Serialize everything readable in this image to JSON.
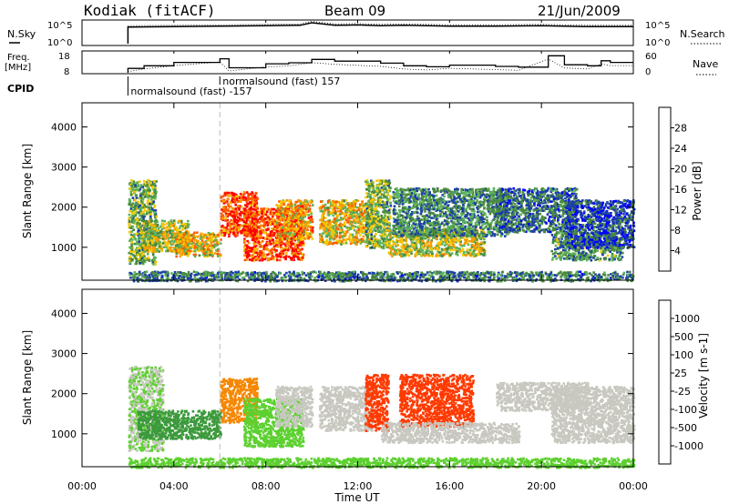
{
  "header": {
    "station": "Kodiak (fitACF)",
    "beam": "Beam 09",
    "date": "21/Jun/2009"
  },
  "left_labels": {
    "nsky": "N.Sky",
    "freq_line1": "Freq.",
    "freq_line2": "[MHz]",
    "cpid": "CPID"
  },
  "right_labels": {
    "nsearch": "N.Search",
    "nave": "Nave"
  },
  "cpid_labels": [
    {
      "text": "normalsound (fast) -157",
      "start_hour": 2.0
    },
    {
      "text": "normalsound (fast) 157",
      "start_hour": 6.0
    }
  ],
  "colors": {
    "power": [
      "#0000ff",
      "#1c3fa8",
      "#4a8a3c",
      "#5cb35c",
      "#f5c800",
      "#f59a00",
      "#ff5a00",
      "#ff0000"
    ],
    "velocity": [
      "#ff0000",
      "#ff3a00",
      "#f58700",
      "#f5b700",
      "#c8c8c0",
      "#5dd030",
      "#3c9a3c",
      "#1e5a6e",
      "#1e3aa8",
      "#1f3fbf"
    ]
  },
  "chart_data": [
    {
      "type": "line",
      "name": "N.Sky / N.Search",
      "x_unit": "hour UT",
      "xlim": [
        0,
        24
      ],
      "ylabel": "N.Sky",
      "y2label": "N.Search",
      "ytick_labels": [
        "10^5",
        "10^0"
      ],
      "y2tick_labels": [
        "10^5",
        "10^0"
      ],
      "x": [
        2,
        4,
        6,
        8,
        9.5,
        10,
        11,
        12,
        13,
        14,
        16,
        18,
        20,
        22,
        24
      ],
      "y_log10": [
        3.8,
        3.9,
        4.0,
        4.1,
        4.2,
        4.8,
        4.2,
        4.3,
        4.1,
        4.2,
        4.0,
        4.0,
        4.1,
        3.9,
        3.9
      ]
    },
    {
      "type": "line",
      "name": "Freq. [MHz] / Nave",
      "x_unit": "hour UT",
      "xlim": [
        0,
        24
      ],
      "ylabel": "Freq. [MHz]",
      "ytick_labels": [
        "18",
        "8"
      ],
      "y2label": "Nave",
      "y2tick_labels": [
        "60",
        "0"
      ],
      "x": [
        2,
        2.7,
        4,
        6,
        6.4,
        8,
        9,
        10,
        11,
        13,
        14,
        15,
        16,
        18,
        19,
        20.3,
        21,
        22,
        22.6,
        23,
        24
      ],
      "y": [
        10.2,
        11.5,
        13.2,
        15.0,
        10.5,
        12.5,
        13.0,
        14.7,
        13.8,
        12.8,
        11.5,
        11.0,
        11.8,
        11.2,
        10.8,
        16.5,
        12.0,
        11.5,
        14.0,
        13.2,
        13.2
      ]
    },
    {
      "type": "heatmap",
      "name": "Power",
      "x_unit": "hour UT",
      "xlim": [
        0,
        24
      ],
      "ylim": [
        180,
        4600
      ],
      "ylabel": "Slant Range [km]",
      "yticks": [
        1000,
        2000,
        3000,
        4000
      ],
      "colorbar_label": "Power [dB]",
      "colorbar_ticks": [
        4,
        8,
        12,
        16,
        20,
        24,
        28
      ],
      "colorbar_range": [
        0,
        32
      ],
      "blobs": [
        {
          "t0": 2.0,
          "t1": 3.2,
          "r0": 600,
          "r1": 2700,
          "v": 13
        },
        {
          "t0": 2.6,
          "t1": 4.6,
          "r0": 900,
          "r1": 1700,
          "v": 16
        },
        {
          "t0": 4.0,
          "t1": 6.0,
          "r0": 800,
          "r1": 1400,
          "v": 19
        },
        {
          "t0": 6.0,
          "t1": 7.6,
          "r0": 1300,
          "r1": 2400,
          "v": 29
        },
        {
          "t0": 7.0,
          "t1": 9.6,
          "r0": 700,
          "r1": 2000,
          "v": 28
        },
        {
          "t0": 8.4,
          "t1": 10.0,
          "r0": 1200,
          "r1": 2200,
          "v": 21
        },
        {
          "t0": 10.3,
          "t1": 12.6,
          "r0": 1100,
          "r1": 2200,
          "v": 19
        },
        {
          "t0": 12.3,
          "t1": 13.4,
          "r0": 1000,
          "r1": 2700,
          "v": 13
        },
        {
          "t0": 13.3,
          "t1": 17.5,
          "r0": 800,
          "r1": 1500,
          "v": 17
        },
        {
          "t0": 13.5,
          "t1": 18.5,
          "r0": 1300,
          "r1": 2500,
          "v": 10
        },
        {
          "t0": 18.0,
          "t1": 21.5,
          "r0": 1400,
          "r1": 2500,
          "v": 8
        },
        {
          "t0": 20.4,
          "t1": 23.5,
          "r0": 700,
          "r1": 1400,
          "v": 11
        },
        {
          "t0": 21.0,
          "t1": 24.0,
          "r0": 1000,
          "r1": 2200,
          "v": 6
        },
        {
          "t0": 2.0,
          "t1": 24.0,
          "r0": 180,
          "r1": 420,
          "v": 9
        }
      ]
    },
    {
      "type": "heatmap",
      "name": "Velocity",
      "x_unit": "hour UT",
      "xlim": [
        0,
        24
      ],
      "ylim": [
        180,
        4600
      ],
      "ylabel": "Slant Range [km]",
      "yticks": [
        1000,
        2000,
        3000,
        4000
      ],
      "colorbar_label": "Velocity [m s-1]",
      "colorbar_ticks": [
        1000,
        500,
        100,
        25,
        -25,
        -100,
        -500,
        -1000
      ],
      "blobs": [
        {
          "t0": 2.0,
          "t1": 3.5,
          "r0": 600,
          "r1": 2700,
          "v": 25
        },
        {
          "t0": 2.4,
          "t1": 6.0,
          "r0": 900,
          "r1": 1600,
          "v": 180
        },
        {
          "t0": 6.0,
          "t1": 7.6,
          "r0": 1300,
          "r1": 2400,
          "v": -60
        },
        {
          "t0": 7.0,
          "t1": 9.6,
          "r0": 700,
          "r1": 1900,
          "v": 60
        },
        {
          "t0": 8.4,
          "t1": 10.0,
          "r0": 1200,
          "r1": 2200,
          "v": 0
        },
        {
          "t0": 10.3,
          "t1": 12.6,
          "r0": 1100,
          "r1": 2200,
          "v": 0
        },
        {
          "t0": 12.3,
          "t1": 13.3,
          "r0": 1100,
          "r1": 2500,
          "v": -150
        },
        {
          "t0": 13.8,
          "t1": 17.0,
          "r0": 1200,
          "r1": 2500,
          "v": -200
        },
        {
          "t0": 13.0,
          "t1": 19.0,
          "r0": 800,
          "r1": 1300,
          "v": 0
        },
        {
          "t0": 18.0,
          "t1": 22.0,
          "r0": 1600,
          "r1": 2300,
          "v": 0
        },
        {
          "t0": 20.4,
          "t1": 24.0,
          "r0": 800,
          "r1": 2200,
          "v": 0
        },
        {
          "t0": 2.0,
          "t1": 24.0,
          "r0": 180,
          "r1": 420,
          "v": 60
        }
      ]
    }
  ],
  "xaxis": {
    "label": "Time UT",
    "tick_hours": [
      0,
      4,
      8,
      12,
      16,
      20,
      24
    ],
    "tick_labels": [
      "00:00",
      "04:00",
      "08:00",
      "12:00",
      "16:00",
      "20:00",
      "00:00"
    ]
  }
}
